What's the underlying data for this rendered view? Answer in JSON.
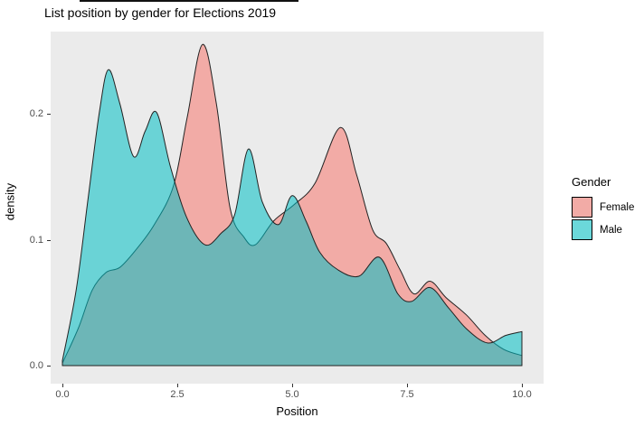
{
  "title": "List position by gender for Elections 2019",
  "chart_data": {
    "type": "area",
    "subtype": "overlaid-density",
    "title": "List position by gender for Elections 2019",
    "xlabel": "Position",
    "ylabel": "density",
    "xlim": [
      0,
      10
    ],
    "ylim": [
      0,
      0.265
    ],
    "grid": false,
    "panel_bg": "#EBEBEB",
    "axis_text_color": "#4D4D4D",
    "x_ticks": [
      {
        "label": "0.0",
        "value": 0
      },
      {
        "label": "2.5",
        "value": 2.5
      },
      {
        "label": "5.0",
        "value": 5
      },
      {
        "label": "7.5",
        "value": 7.5
      },
      {
        "label": "10.0",
        "value": 10
      }
    ],
    "y_ticks": [
      {
        "label": "0.0",
        "value": 0
      },
      {
        "label": "0.1",
        "value": 0.1
      },
      {
        "label": "0.2",
        "value": 0.2
      }
    ],
    "legend": {
      "title": "Gender",
      "position": "right",
      "entries": [
        {
          "label": "Female",
          "swatch_color": "#F2ABA6"
        },
        {
          "label": "Male",
          "swatch_color": "#6BD8DA"
        }
      ]
    },
    "series": [
      {
        "name": "Female",
        "fill": "#F2ABA6",
        "stroke": "#222222",
        "points": [
          [
            0,
            0.002
          ],
          [
            0.35,
            0.03
          ],
          [
            0.65,
            0.06
          ],
          [
            0.95,
            0.074
          ],
          [
            1.25,
            0.078
          ],
          [
            1.6,
            0.092
          ],
          [
            2.0,
            0.112
          ],
          [
            2.42,
            0.143
          ],
          [
            2.72,
            0.198
          ],
          [
            3.05,
            0.255
          ],
          [
            3.35,
            0.208
          ],
          [
            3.65,
            0.125
          ],
          [
            3.95,
            0.102
          ],
          [
            4.2,
            0.096
          ],
          [
            4.6,
            0.115
          ],
          [
            5.05,
            0.128
          ],
          [
            5.5,
            0.145
          ],
          [
            6.05,
            0.189
          ],
          [
            6.4,
            0.152
          ],
          [
            6.75,
            0.108
          ],
          [
            7.05,
            0.097
          ],
          [
            7.35,
            0.076
          ],
          [
            7.65,
            0.057
          ],
          [
            8.0,
            0.067
          ],
          [
            8.35,
            0.054
          ],
          [
            8.8,
            0.04
          ],
          [
            9.2,
            0.024
          ],
          [
            9.6,
            0.013
          ],
          [
            10,
            0.008
          ]
        ]
      },
      {
        "name": "Male",
        "fill": "rgba(0,191,196,0.55)",
        "stroke": "#222222",
        "points": [
          [
            0,
            0.004
          ],
          [
            0.3,
            0.06
          ],
          [
            0.55,
            0.13
          ],
          [
            0.8,
            0.2
          ],
          [
            1.0,
            0.235
          ],
          [
            1.25,
            0.208
          ],
          [
            1.55,
            0.166
          ],
          [
            1.8,
            0.186
          ],
          [
            2.05,
            0.201
          ],
          [
            2.35,
            0.158
          ],
          [
            2.7,
            0.118
          ],
          [
            3.1,
            0.096
          ],
          [
            3.45,
            0.105
          ],
          [
            3.75,
            0.12
          ],
          [
            4.05,
            0.172
          ],
          [
            4.35,
            0.13
          ],
          [
            4.7,
            0.112
          ],
          [
            5.0,
            0.135
          ],
          [
            5.3,
            0.115
          ],
          [
            5.6,
            0.09
          ],
          [
            6.0,
            0.076
          ],
          [
            6.45,
            0.071
          ],
          [
            6.9,
            0.086
          ],
          [
            7.3,
            0.057
          ],
          [
            7.6,
            0.051
          ],
          [
            8.0,
            0.062
          ],
          [
            8.4,
            0.046
          ],
          [
            8.8,
            0.029
          ],
          [
            9.25,
            0.018
          ],
          [
            9.65,
            0.024
          ],
          [
            10,
            0.027
          ]
        ]
      }
    ],
    "scale": {
      "x_offset": 13,
      "x_per_unit": 50.8,
      "y_base": 370,
      "y_per_unit": 1395
    }
  }
}
